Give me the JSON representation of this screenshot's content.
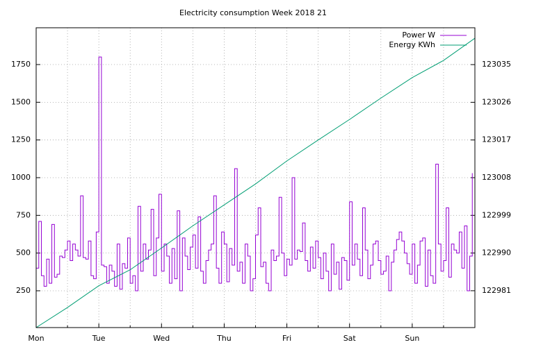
{
  "chart_data": {
    "type": "line",
    "title": "Electricity consumption Week 2018 21",
    "step": true,
    "grid": true,
    "legend": "top-right",
    "xlim": [
      0,
      168
    ],
    "xticks": [
      {
        "value": 0,
        "label": "Mon"
      },
      {
        "value": 24,
        "label": "Tue"
      },
      {
        "value": 48,
        "label": "Wed"
      },
      {
        "value": 72,
        "label": "Thu"
      },
      {
        "value": 96,
        "label": "Fri"
      },
      {
        "value": 120,
        "label": "Sat"
      },
      {
        "value": 144,
        "label": "Sun"
      }
    ],
    "x_minor_ticks": [
      12,
      36,
      60,
      84,
      108,
      132,
      156
    ],
    "ylim": [
      6,
      1994
    ],
    "yticks": [
      250,
      500,
      750,
      1000,
      1250,
      1500,
      1750
    ],
    "y2lim": [
      122972.2,
      123043.8
    ],
    "y2ticks": [
      122981,
      122990,
      122999,
      123008,
      123017,
      123026,
      123035
    ],
    "series": [
      {
        "name": "Power W",
        "color": "#9400d3",
        "x": [
          0,
          1,
          2,
          3,
          4,
          5,
          6,
          7,
          8,
          9,
          10,
          11,
          12,
          13,
          14,
          15,
          16,
          17,
          18,
          19,
          20,
          21,
          22,
          23,
          24,
          25,
          26,
          27,
          28,
          29,
          30,
          31,
          32,
          33,
          34,
          35,
          36,
          37,
          38,
          39,
          40,
          41,
          42,
          43,
          44,
          45,
          46,
          47,
          48,
          49,
          50,
          51,
          52,
          53,
          54,
          55,
          56,
          57,
          58,
          59,
          60,
          61,
          62,
          63,
          64,
          65,
          66,
          67,
          68,
          69,
          70,
          71,
          72,
          73,
          74,
          75,
          76,
          77,
          78,
          79,
          80,
          81,
          82,
          83,
          84,
          85,
          86,
          87,
          88,
          89,
          90,
          91,
          92,
          93,
          94,
          95,
          96,
          97,
          98,
          99,
          100,
          101,
          102,
          103,
          104,
          105,
          106,
          107,
          108,
          109,
          110,
          111,
          112,
          113,
          114,
          115,
          116,
          117,
          118,
          119,
          120,
          121,
          122,
          123,
          124,
          125,
          126,
          127,
          128,
          129,
          130,
          131,
          132,
          133,
          134,
          135,
          136,
          137,
          138,
          139,
          140,
          141,
          142,
          143,
          144,
          145,
          146,
          147,
          148,
          149,
          150,
          151,
          152,
          153,
          154,
          155,
          156,
          157,
          158,
          159,
          160,
          161,
          162,
          163,
          164,
          165,
          166,
          167
        ],
        "values": [
          400,
          710,
          350,
          280,
          460,
          300,
          690,
          340,
          360,
          480,
          470,
          520,
          580,
          450,
          560,
          520,
          480,
          880,
          470,
          460,
          580,
          350,
          330,
          640,
          1800,
          420,
          410,
          300,
          420,
          380,
          280,
          560,
          260,
          430,
          400,
          600,
          300,
          350,
          250,
          810,
          380,
          560,
          460,
          520,
          790,
          350,
          600,
          890,
          380,
          560,
          480,
          300,
          530,
          330,
          780,
          250,
          600,
          480,
          390,
          540,
          620,
          400,
          740,
          380,
          300,
          450,
          520,
          560,
          880,
          400,
          300,
          640,
          560,
          310,
          530,
          420,
          1060,
          380,
          440,
          300,
          560,
          480,
          250,
          330,
          620,
          800,
          410,
          440,
          300,
          250,
          520,
          450,
          480,
          870,
          500,
          350,
          460,
          420,
          1000,
          460,
          520,
          510,
          700,
          450,
          380,
          540,
          400,
          580,
          470,
          330,
          500,
          380,
          250,
          560,
          360,
          440,
          260,
          470,
          450,
          320,
          840,
          420,
          560,
          460,
          350,
          800,
          520,
          330,
          420,
          560,
          580,
          450,
          360,
          380,
          480,
          250,
          440,
          520,
          590,
          640,
          580,
          500,
          430,
          360,
          560,
          300,
          420,
          580,
          600,
          280,
          520,
          350,
          300,
          1090,
          560,
          380,
          450,
          800,
          340,
          560,
          520,
          500,
          640,
          400,
          680,
          250,
          480,
          1030
        ]
      },
      {
        "name": "Energy KWh",
        "color": "#009e73",
        "axis": "y2",
        "x": [
          0,
          12,
          24,
          36,
          48,
          60,
          72,
          84,
          96,
          108,
          120,
          132,
          144,
          156,
          168
        ],
        "values": [
          122972.2,
          122977,
          122982.2,
          122986,
          122991.2,
          122996.5,
          123001.5,
          123006.5,
          123012,
          123017,
          123021.9,
          123027,
          123031.9,
          123036,
          123041.3
        ]
      }
    ]
  }
}
